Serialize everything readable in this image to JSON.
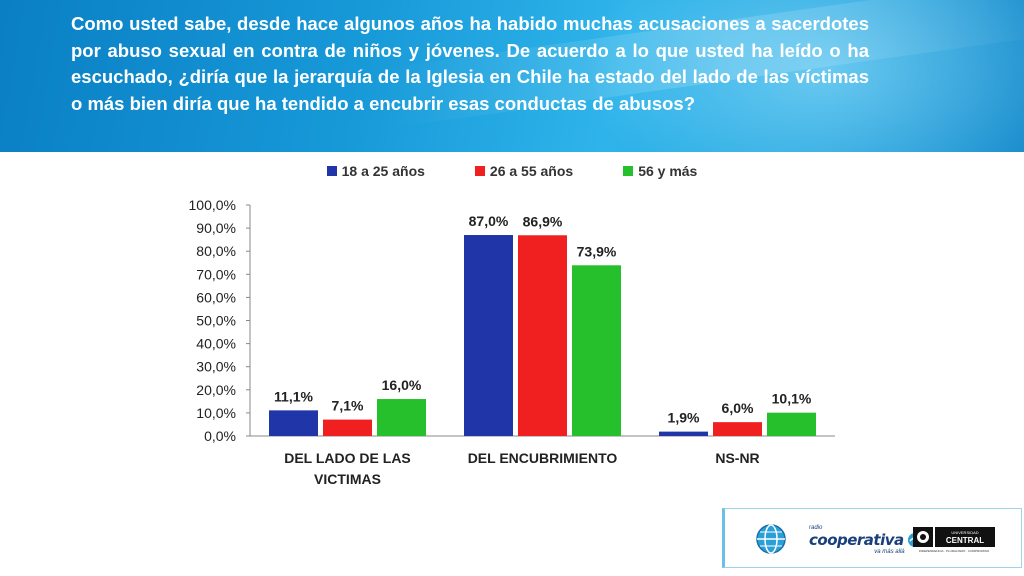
{
  "header": {
    "question": "Como usted sabe, desde hace algunos años ha habido muchas acusaciones a sacerdotes por abuso sexual en contra de niños y jóvenes. De acuerdo a lo que usted ha leído o ha escuchado, ¿diría que la jerarquía de la Iglesia en Chile ha estado del lado de las víctimas o más bien diría que ha tendido a encubrir esas conductas de abusos?"
  },
  "chart_data": {
    "type": "bar",
    "title": "",
    "xlabel": "",
    "ylabel": "",
    "ylim": [
      0,
      100
    ],
    "categories": [
      "DEL LADO DE LAS VICTIMAS",
      "DEL ENCUBRIMIENTO",
      "NS-NR"
    ],
    "category_lines": [
      [
        "DEL LADO DE LAS",
        "VICTIMAS"
      ],
      [
        "DEL ENCUBRIMIENTO"
      ],
      [
        "NS-NR"
      ]
    ],
    "yticks": [
      "0,0%",
      "10,0%",
      "20,0%",
      "30,0%",
      "40,0%",
      "50,0%",
      "60,0%",
      "70,0%",
      "80,0%",
      "90,0%",
      "100,0%"
    ],
    "legend_position": "top",
    "grid": false,
    "series": [
      {
        "name": "18 a 25 años",
        "color": "#1f35a8",
        "values": [
          11.1,
          87.0,
          1.9
        ],
        "labels": [
          "11,1%",
          "87,0%",
          "1,9%"
        ]
      },
      {
        "name": "26 a 55 años",
        "color": "#f02020",
        "values": [
          7.1,
          86.9,
          6.0
        ],
        "labels": [
          "7,1%",
          "86,9%",
          "6,0%"
        ]
      },
      {
        "name": "56 y más",
        "color": "#25c02b",
        "values": [
          16.0,
          73.9,
          10.1
        ],
        "labels": [
          "16,0%",
          "73,9%",
          "10,1%"
        ]
      }
    ]
  },
  "logos": {
    "cooperativa": "cooperativa",
    "cooperativa_small_top": "radio",
    "cooperativa_small_bottom": "va más allá",
    "ucentral_top": "UNIVERSIDAD",
    "ucentral_name": "CENTRAL",
    "ucentral_tagline": "INDEPENDENCIA · PLURALISMO · COMPROMISO"
  }
}
